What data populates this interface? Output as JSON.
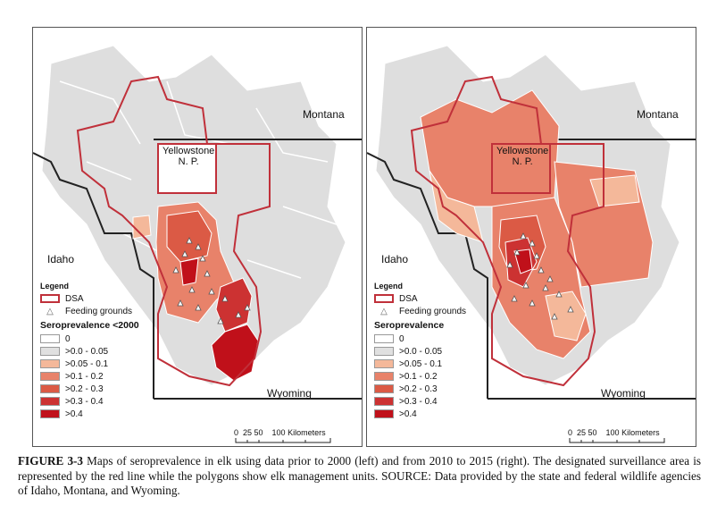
{
  "colors": {
    "dsa_outline": "#c0303a",
    "feeding_ground": "#ffffff",
    "state_line": "#222222",
    "background_land": "#d9d9d9",
    "class_0": "#ffffff",
    "class_0_005": "#e0e0e0",
    "class_005_01": "#f4b89a",
    "class_01_02": "#e8826a",
    "class_02_03": "#db5a45",
    "class_03_04": "#cc3232",
    "class_04": "#c0101a"
  },
  "maps": [
    {
      "id": "left",
      "place_labels": {
        "yellowstone": "Yellowstone\nN. P.",
        "montana": "Montana",
        "idaho": "Idaho",
        "wyoming": "Wyoming"
      },
      "legend": {
        "title": "Legend",
        "dsa": "DSA",
        "feeding": "Feeding grounds",
        "heading": "Seroprevalence <2000",
        "classes": [
          "0",
          ">0.0 - 0.05",
          ">0.05 - 0.1",
          ">0.1 - 0.2",
          ">0.2 - 0.3",
          ">0.3 - 0.4",
          ">0.4"
        ]
      },
      "scale": {
        "ticks": "0  25 50",
        "label": "100 Kilometers"
      }
    },
    {
      "id": "right",
      "place_labels": {
        "yellowstone": "Yellowstone\nN. P.",
        "montana": "Montana",
        "idaho": "Idaho",
        "wyoming": "Wyoming"
      },
      "legend": {
        "title": "Legend",
        "dsa": "DSA",
        "feeding": "Feeding grounds",
        "heading": "Seroprevalence",
        "classes": [
          "0",
          ">0.0 - 0.05",
          ">0.05 - 0.1",
          ">0.1 - 0.2",
          ">0.2 - 0.3",
          ">0.3 - 0.4",
          ">0.4"
        ]
      },
      "scale": {
        "ticks": "0  25 50",
        "label": "100 Kilometers"
      }
    }
  ],
  "caption": {
    "figure_label": "FIGURE 3-3",
    "text": " Maps of seroprevalence in elk using data prior to 2000 (left) and from 2010 to 2015 (right). The designated surveillance area is represented by the red line while the polygons show elk management units. SOURCE: Data provided by the state and federal wildlife agencies of Idaho, Montana, and Wyoming."
  }
}
